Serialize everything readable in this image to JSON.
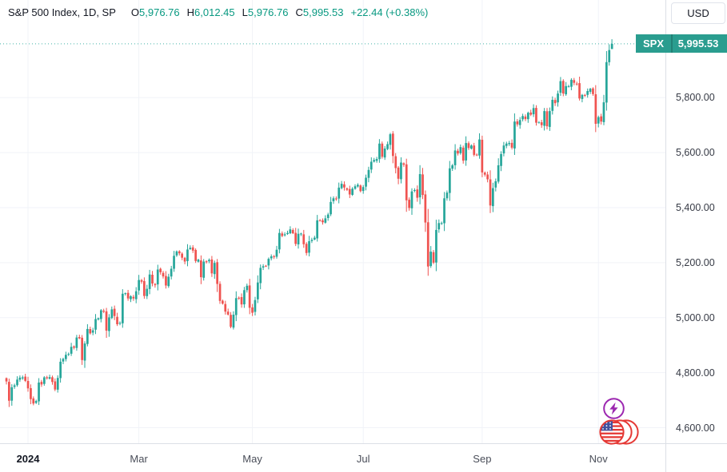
{
  "header": {
    "title": "S&P 500 Index, 1D, SP",
    "ohlc": [
      {
        "label": "O",
        "value": "5,976.76"
      },
      {
        "label": "H",
        "value": "6,012.45"
      },
      {
        "label": "L",
        "value": "5,976.76"
      },
      {
        "label": "C",
        "value": "5,995.53"
      }
    ],
    "change": "+22.44 (+0.38%)"
  },
  "price_scale": {
    "currency_button": "USD",
    "label": {
      "symbol": "SPX",
      "price": "5,995.53"
    },
    "ticks": [
      {
        "text": "5,800.00",
        "value": 5800
      },
      {
        "text": "5,600.00",
        "value": 5600
      },
      {
        "text": "5,400.00",
        "value": 5400
      },
      {
        "text": "5,200.00",
        "value": 5200
      },
      {
        "text": "5,000.00",
        "value": 5000
      },
      {
        "text": "4,800.00",
        "value": 4800
      },
      {
        "text": "4,600.00",
        "value": 4600
      }
    ]
  },
  "colors": {
    "up": "#26a69a",
    "down": "#ef5350",
    "label_bg": "#2a9d8f",
    "accent_text": "#089981",
    "grid": "#f1f3f8",
    "axis_line": "#dcdfe6",
    "text_dark": "#131722",
    "bolt_purple": "#9c27b0",
    "flag_red": "#e53935",
    "flag_blue": "#42519e"
  },
  "chart_data": {
    "type": "candlestick",
    "title": "S&P 500 Index",
    "symbol": "SPX",
    "interval": "1D",
    "currency": "USD",
    "ylim": [
      4542,
      6155
    ],
    "grid": true,
    "y_ticks": [
      4600,
      4800,
      5000,
      5200,
      5400,
      5600,
      5800
    ],
    "x_start": 8,
    "x_step": 3.38,
    "pane_width": 832.5,
    "pane_height": 555.5,
    "x_labels": [
      {
        "label": "2024",
        "index": 8,
        "bold": true
      },
      {
        "label": "Mar",
        "index": 49
      },
      {
        "label": "May",
        "index": 91
      },
      {
        "label": "Jul",
        "index": 132
      },
      {
        "label": "Sep",
        "index": 176
      },
      {
        "label": "Nov",
        "index": 219
      }
    ],
    "closes": [
      4768,
      4698,
      4747,
      4754,
      4775,
      4782,
      4783,
      4770,
      4743,
      4704,
      4688,
      4697,
      4764,
      4757,
      4783,
      4780,
      4784,
      4766,
      4739,
      4781,
      4840,
      4850,
      4865,
      4868,
      4894,
      4891,
      4928,
      4925,
      4846,
      4906,
      4959,
      4943,
      4954,
      4995,
      4998,
      5027,
      5022,
      4953,
      5001,
      5030,
      5006,
      4976,
      4981,
      5087,
      5089,
      5070,
      5078,
      5070,
      5096,
      5137,
      5131,
      5079,
      5105,
      5157,
      5124,
      5118,
      5175,
      5165,
      5150,
      5117,
      5149,
      5178,
      5225,
      5241,
      5234,
      5218,
      5204,
      5248,
      5254,
      5244,
      5206,
      5211,
      5147,
      5204,
      5202,
      5210,
      5161,
      5199,
      5123,
      5061,
      5051,
      5022,
      5011,
      4967,
      5011,
      5071,
      5072,
      5048,
      5100,
      5116,
      5036,
      5018,
      5064,
      5128,
      5181,
      5187,
      5188,
      5214,
      5223,
      5221,
      5247,
      5308,
      5297,
      5303,
      5308,
      5321,
      5307,
      5268,
      5305,
      5306,
      5267,
      5235,
      5278,
      5283,
      5291,
      5354,
      5353,
      5347,
      5361,
      5375,
      5421,
      5434,
      5432,
      5473,
      5487,
      5473,
      5465,
      5448,
      5469,
      5478,
      5483,
      5460,
      5475,
      5509,
      5537,
      5567,
      5573,
      5577,
      5633,
      5585,
      5615,
      5631,
      5667,
      5588,
      5544,
      5505,
      5564,
      5556,
      5427,
      5399,
      5459,
      5464,
      5436,
      5522,
      5446,
      5346,
      5186,
      5240,
      5200,
      5319,
      5344,
      5344,
      5434,
      5455,
      5543,
      5554,
      5608,
      5597,
      5620,
      5571,
      5635,
      5617,
      5626,
      5592,
      5592,
      5648,
      5528,
      5520,
      5503,
      5408,
      5471,
      5496,
      5554,
      5595,
      5626,
      5633,
      5635,
      5618,
      5713,
      5703,
      5719,
      5733,
      5722,
      5745,
      5738,
      5762,
      5709,
      5710,
      5700,
      5751,
      5696,
      5751,
      5792,
      5780,
      5815,
      5860,
      5815,
      5842,
      5841,
      5865,
      5854,
      5851,
      5797,
      5810,
      5808,
      5824,
      5832,
      5813,
      5705,
      5729,
      5713,
      5783,
      5929,
      5973,
      5995.53
    ],
    "last_candle": {
      "open": 5976.76,
      "high": 6012.45,
      "low": 5976.76,
      "close": 5995.53
    },
    "price_line": 5995.53
  }
}
